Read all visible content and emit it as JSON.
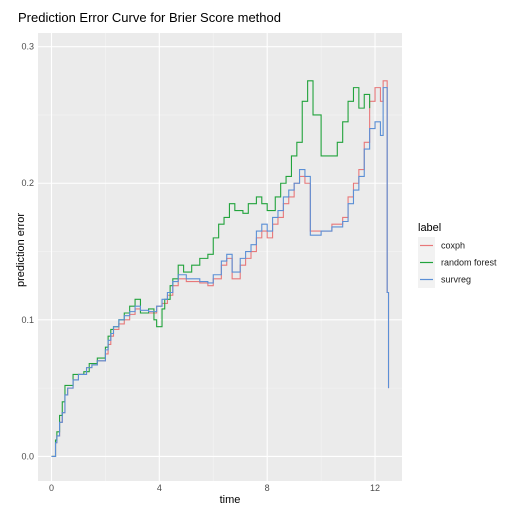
{
  "chart_data": {
    "type": "line",
    "title": "Prediction Error Curve for Brier Score method",
    "xlabel": "time",
    "ylabel": "prediction error",
    "xlim": [
      -0.5,
      13
    ],
    "ylim": [
      -0.018,
      0.31
    ],
    "x_ticks": [
      0,
      4,
      8,
      12
    ],
    "x_tick_labels": [
      "0",
      "4",
      "8",
      "12"
    ],
    "y_ticks": [
      0,
      0.1,
      0.2,
      0.3
    ],
    "y_tick_labels": [
      "0.0",
      "0.1",
      "0.2",
      "0.3"
    ],
    "grid": true,
    "legend_position": "right",
    "legend_title": "label",
    "step": true,
    "series": [
      {
        "name": "coxph",
        "color": "#E8787A",
        "points": [
          [
            0,
            0
          ],
          [
            0.15,
            0.01
          ],
          [
            0.2,
            0.015
          ],
          [
            0.3,
            0.025
          ],
          [
            0.4,
            0.032
          ],
          [
            0.5,
            0.045
          ],
          [
            0.6,
            0.05
          ],
          [
            0.8,
            0.056
          ],
          [
            1.0,
            0.06
          ],
          [
            1.3,
            0.065
          ],
          [
            1.5,
            0.067
          ],
          [
            1.7,
            0.07
          ],
          [
            2.0,
            0.075
          ],
          [
            2.1,
            0.082
          ],
          [
            2.2,
            0.088
          ],
          [
            2.3,
            0.093
          ],
          [
            2.5,
            0.097
          ],
          [
            2.7,
            0.1
          ],
          [
            2.9,
            0.104
          ],
          [
            3.1,
            0.108
          ],
          [
            3.3,
            0.105
          ],
          [
            3.6,
            0.105
          ],
          [
            3.9,
            0.11
          ],
          [
            4.1,
            0.112
          ],
          [
            4.3,
            0.118
          ],
          [
            4.5,
            0.125
          ],
          [
            4.7,
            0.13
          ],
          [
            5.0,
            0.128
          ],
          [
            5.5,
            0.127
          ],
          [
            5.8,
            0.125
          ],
          [
            6.0,
            0.13
          ],
          [
            6.3,
            0.14
          ],
          [
            6.5,
            0.145
          ],
          [
            6.7,
            0.13
          ],
          [
            7.0,
            0.14
          ],
          [
            7.2,
            0.145
          ],
          [
            7.4,
            0.15
          ],
          [
            7.6,
            0.16
          ],
          [
            7.8,
            0.165
          ],
          [
            8.0,
            0.16
          ],
          [
            8.2,
            0.17
          ],
          [
            8.4,
            0.175
          ],
          [
            8.6,
            0.185
          ],
          [
            8.8,
            0.19
          ],
          [
            9.0,
            0.2
          ],
          [
            9.2,
            0.205
          ],
          [
            9.4,
            0.2
          ],
          [
            9.6,
            0.165
          ],
          [
            10.0,
            0.165
          ],
          [
            10.4,
            0.17
          ],
          [
            10.8,
            0.175
          ],
          [
            11.0,
            0.19
          ],
          [
            11.2,
            0.2
          ],
          [
            11.4,
            0.21
          ],
          [
            11.6,
            0.23
          ],
          [
            11.8,
            0.26
          ],
          [
            12.0,
            0.27
          ],
          [
            12.2,
            0.26
          ],
          [
            12.3,
            0.275
          ],
          [
            12.45,
            0.12
          ],
          [
            12.5,
            0.05
          ]
        ]
      },
      {
        "name": "random forest",
        "color": "#22A33C",
        "points": [
          [
            0,
            0
          ],
          [
            0.15,
            0.012
          ],
          [
            0.2,
            0.018
          ],
          [
            0.3,
            0.03
          ],
          [
            0.4,
            0.04
          ],
          [
            0.5,
            0.052
          ],
          [
            0.8,
            0.06
          ],
          [
            1.2,
            0.062
          ],
          [
            1.4,
            0.068
          ],
          [
            1.7,
            0.072
          ],
          [
            2.0,
            0.08
          ],
          [
            2.1,
            0.088
          ],
          [
            2.2,
            0.093
          ],
          [
            2.3,
            0.095
          ],
          [
            2.5,
            0.1
          ],
          [
            2.7,
            0.105
          ],
          [
            2.9,
            0.11
          ],
          [
            3.1,
            0.115
          ],
          [
            3.3,
            0.105
          ],
          [
            3.6,
            0.108
          ],
          [
            3.8,
            0.1
          ],
          [
            3.9,
            0.095
          ],
          [
            4.1,
            0.108
          ],
          [
            4.2,
            0.115
          ],
          [
            4.4,
            0.125
          ],
          [
            4.5,
            0.13
          ],
          [
            4.7,
            0.14
          ],
          [
            4.9,
            0.135
          ],
          [
            5.2,
            0.14
          ],
          [
            5.5,
            0.145
          ],
          [
            5.8,
            0.148
          ],
          [
            6.0,
            0.16
          ],
          [
            6.2,
            0.17
          ],
          [
            6.4,
            0.175
          ],
          [
            6.6,
            0.185
          ],
          [
            6.8,
            0.18
          ],
          [
            7.1,
            0.178
          ],
          [
            7.3,
            0.185
          ],
          [
            7.6,
            0.19
          ],
          [
            7.8,
            0.185
          ],
          [
            8.0,
            0.18
          ],
          [
            8.3,
            0.19
          ],
          [
            8.5,
            0.2
          ],
          [
            8.7,
            0.205
          ],
          [
            8.9,
            0.22
          ],
          [
            9.1,
            0.23
          ],
          [
            9.3,
            0.26
          ],
          [
            9.5,
            0.275
          ],
          [
            9.7,
            0.25
          ],
          [
            10.0,
            0.22
          ],
          [
            10.4,
            0.22
          ],
          [
            10.6,
            0.23
          ],
          [
            10.8,
            0.245
          ],
          [
            11.0,
            0.26
          ],
          [
            11.2,
            0.27
          ],
          [
            11.4,
            0.255
          ],
          [
            11.6,
            0.265
          ],
          [
            11.8,
            0.255
          ]
        ]
      },
      {
        "name": "survreg",
        "color": "#5B8FD6",
        "points": [
          [
            0,
            0
          ],
          [
            0.15,
            0.01
          ],
          [
            0.2,
            0.015
          ],
          [
            0.3,
            0.025
          ],
          [
            0.4,
            0.032
          ],
          [
            0.5,
            0.045
          ],
          [
            0.6,
            0.05
          ],
          [
            0.8,
            0.056
          ],
          [
            1.0,
            0.06
          ],
          [
            1.3,
            0.065
          ],
          [
            1.5,
            0.067
          ],
          [
            1.7,
            0.07
          ],
          [
            2.0,
            0.078
          ],
          [
            2.1,
            0.085
          ],
          [
            2.2,
            0.09
          ],
          [
            2.3,
            0.095
          ],
          [
            2.5,
            0.1
          ],
          [
            2.7,
            0.103
          ],
          [
            2.9,
            0.106
          ],
          [
            3.1,
            0.11
          ],
          [
            3.3,
            0.107
          ],
          [
            3.6,
            0.106
          ],
          [
            3.9,
            0.11
          ],
          [
            4.1,
            0.115
          ],
          [
            4.3,
            0.12
          ],
          [
            4.5,
            0.128
          ],
          [
            4.7,
            0.133
          ],
          [
            5.0,
            0.13
          ],
          [
            5.5,
            0.128
          ],
          [
            5.8,
            0.127
          ],
          [
            6.0,
            0.133
          ],
          [
            6.3,
            0.143
          ],
          [
            6.5,
            0.148
          ],
          [
            6.7,
            0.135
          ],
          [
            7.0,
            0.145
          ],
          [
            7.2,
            0.15
          ],
          [
            7.4,
            0.155
          ],
          [
            7.6,
            0.165
          ],
          [
            7.8,
            0.17
          ],
          [
            8.0,
            0.165
          ],
          [
            8.2,
            0.175
          ],
          [
            8.4,
            0.18
          ],
          [
            8.6,
            0.19
          ],
          [
            8.8,
            0.195
          ],
          [
            9.0,
            0.2
          ],
          [
            9.2,
            0.21
          ],
          [
            9.4,
            0.205
          ],
          [
            9.6,
            0.162
          ],
          [
            10.0,
            0.165
          ],
          [
            10.4,
            0.168
          ],
          [
            10.8,
            0.172
          ],
          [
            11.0,
            0.185
          ],
          [
            11.2,
            0.195
          ],
          [
            11.4,
            0.205
          ],
          [
            11.6,
            0.225
          ],
          [
            11.8,
            0.24
          ],
          [
            12.0,
            0.245
          ],
          [
            12.2,
            0.235
          ],
          [
            12.3,
            0.27
          ],
          [
            12.45,
            0.12
          ],
          [
            12.5,
            0.05
          ]
        ]
      }
    ]
  }
}
